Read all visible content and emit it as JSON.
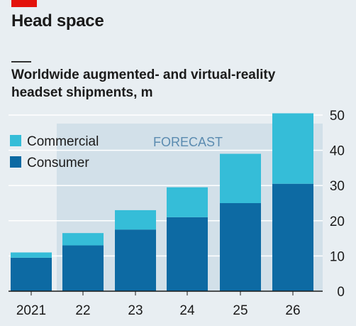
{
  "header": {
    "title": "Head space",
    "subtitle_line1": "Worldwide augmented- and virtual-reality",
    "subtitle_line2": "headset shipments, m"
  },
  "chart_data": {
    "type": "bar",
    "stacked": true,
    "categories": [
      "2021",
      "22",
      "23",
      "24",
      "25",
      "26"
    ],
    "series": [
      {
        "name": "Consumer",
        "values": [
          9.5,
          13,
          17.5,
          21,
          25,
          30.5
        ],
        "color": "#0d6aa3"
      },
      {
        "name": "Commercial",
        "values": [
          1.5,
          3.5,
          5.5,
          8.5,
          14,
          20
        ],
        "color": "#35bdd8"
      }
    ],
    "ylim": [
      0,
      50
    ],
    "yticks": [
      "0",
      "10",
      "20",
      "30",
      "40",
      "50"
    ],
    "forecast_label": "FORECAST",
    "forecast_start_category": "22",
    "grid": true,
    "legend_position": "top-left",
    "colors": {
      "forecast_band": "#d2e0e9",
      "grid": "#ffffff",
      "forecast_text": "#5b8bb0"
    }
  }
}
